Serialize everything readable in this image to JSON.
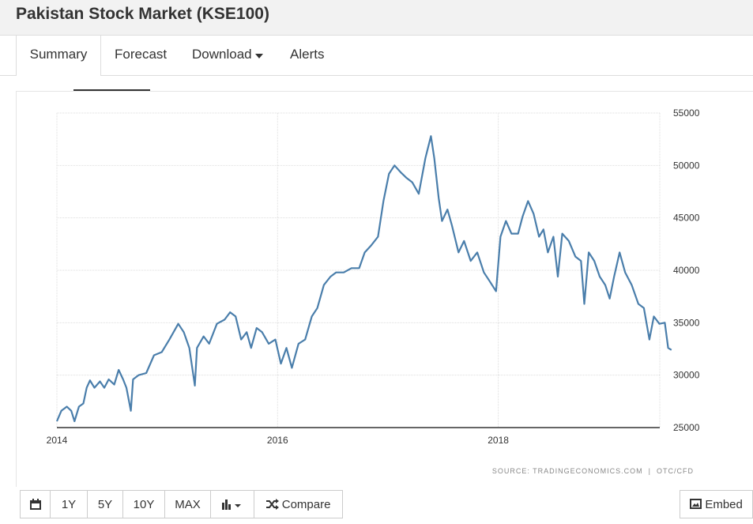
{
  "header": {
    "title": "Pakistan Stock Market (KSE100)"
  },
  "tabs": [
    "Summary",
    "Forecast",
    "Download",
    "Alerts"
  ],
  "chart_data": {
    "type": "line",
    "x": [
      2014.0,
      2014.04,
      2014.09,
      2014.13,
      2014.16,
      2014.2,
      2014.24,
      2014.27,
      2014.3,
      2014.34,
      2014.39,
      2014.43,
      2014.47,
      2014.52,
      2014.56,
      2014.6,
      2014.63,
      2014.67,
      2014.69,
      2014.74,
      2014.81,
      2014.88,
      2014.95,
      2015.02,
      2015.1,
      2015.15,
      2015.2,
      2015.25,
      2015.27,
      2015.33,
      2015.38,
      2015.45,
      2015.52,
      2015.57,
      2015.62,
      2015.67,
      2015.72,
      2015.76,
      2015.81,
      2015.86,
      2015.92,
      2015.98,
      2016.03,
      2016.08,
      2016.13,
      2016.19,
      2016.25,
      2016.31,
      2016.36,
      2016.42,
      2016.48,
      2016.53,
      2016.6,
      2016.67,
      2016.74,
      2016.79,
      2016.85,
      2016.91,
      2016.96,
      2017.01,
      2017.06,
      2017.12,
      2017.17,
      2017.22,
      2017.28,
      2017.34,
      2017.39,
      2017.42,
      2017.46,
      2017.49,
      2017.54,
      2017.58,
      2017.64,
      2017.69,
      2017.75,
      2017.81,
      2017.87,
      2017.92,
      2017.98,
      2018.02,
      2018.07,
      2018.12,
      2018.18,
      2018.22,
      2018.27,
      2018.32,
      2018.37,
      2018.41,
      2018.45,
      2018.5,
      2018.54,
      2018.58,
      2018.64,
      2018.7,
      2018.75,
      2018.78,
      2018.82,
      2018.87,
      2018.92,
      2018.97,
      2019.01,
      2019.05,
      2019.1,
      2019.15,
      2019.21,
      2019.27,
      2019.32,
      2019.37,
      2019.41,
      2019.46,
      2019.51,
      2019.54,
      2019.57
    ],
    "series": [
      {
        "name": "KSE100",
        "color": "#4a7eab",
        "values": [
          25600,
          26600,
          27000,
          26600,
          25600,
          27000,
          27300,
          28800,
          29500,
          28800,
          29400,
          28800,
          29600,
          29100,
          30500,
          29600,
          28800,
          26600,
          29600,
          30000,
          30200,
          31900,
          32200,
          33400,
          34900,
          34100,
          32600,
          29000,
          32600,
          33700,
          33000,
          34900,
          35300,
          36000,
          35600,
          33400,
          34100,
          32600,
          34500,
          34100,
          33000,
          33400,
          31100,
          32600,
          30700,
          33000,
          33400,
          35600,
          36400,
          38600,
          39400,
          39800,
          39800,
          40200,
          40200,
          41700,
          42400,
          43200,
          46600,
          49200,
          50000,
          49300,
          48800,
          48400,
          47300,
          50700,
          52800,
          50700,
          46900,
          44700,
          45800,
          44300,
          41700,
          42800,
          40900,
          41700,
          39800,
          39000,
          38000,
          43200,
          44700,
          43500,
          43500,
          45100,
          46600,
          45400,
          43200,
          43900,
          41700,
          43200,
          39400,
          43500,
          42800,
          41300,
          40900,
          36800,
          41700,
          40900,
          39400,
          38600,
          37300,
          39400,
          41700,
          39800,
          38600,
          36800,
          36400,
          33400,
          35600,
          34900,
          35000,
          32600,
          32400
        ]
      }
    ],
    "xlim": [
      2014,
      2019.6
    ],
    "xticks": [
      2014,
      2016,
      2018
    ],
    "ylim": [
      25000,
      55000
    ],
    "yticks": [
      25000,
      30000,
      35000,
      40000,
      45000,
      50000,
      55000
    ],
    "grid": true
  },
  "source": "SOURCE: TRADINGECONOMICS.COM  |  OTC/CFD",
  "toolbar": {
    "ranges": [
      "1Y",
      "5Y",
      "10Y",
      "MAX"
    ],
    "compare": "Compare",
    "embed": "Embed"
  }
}
